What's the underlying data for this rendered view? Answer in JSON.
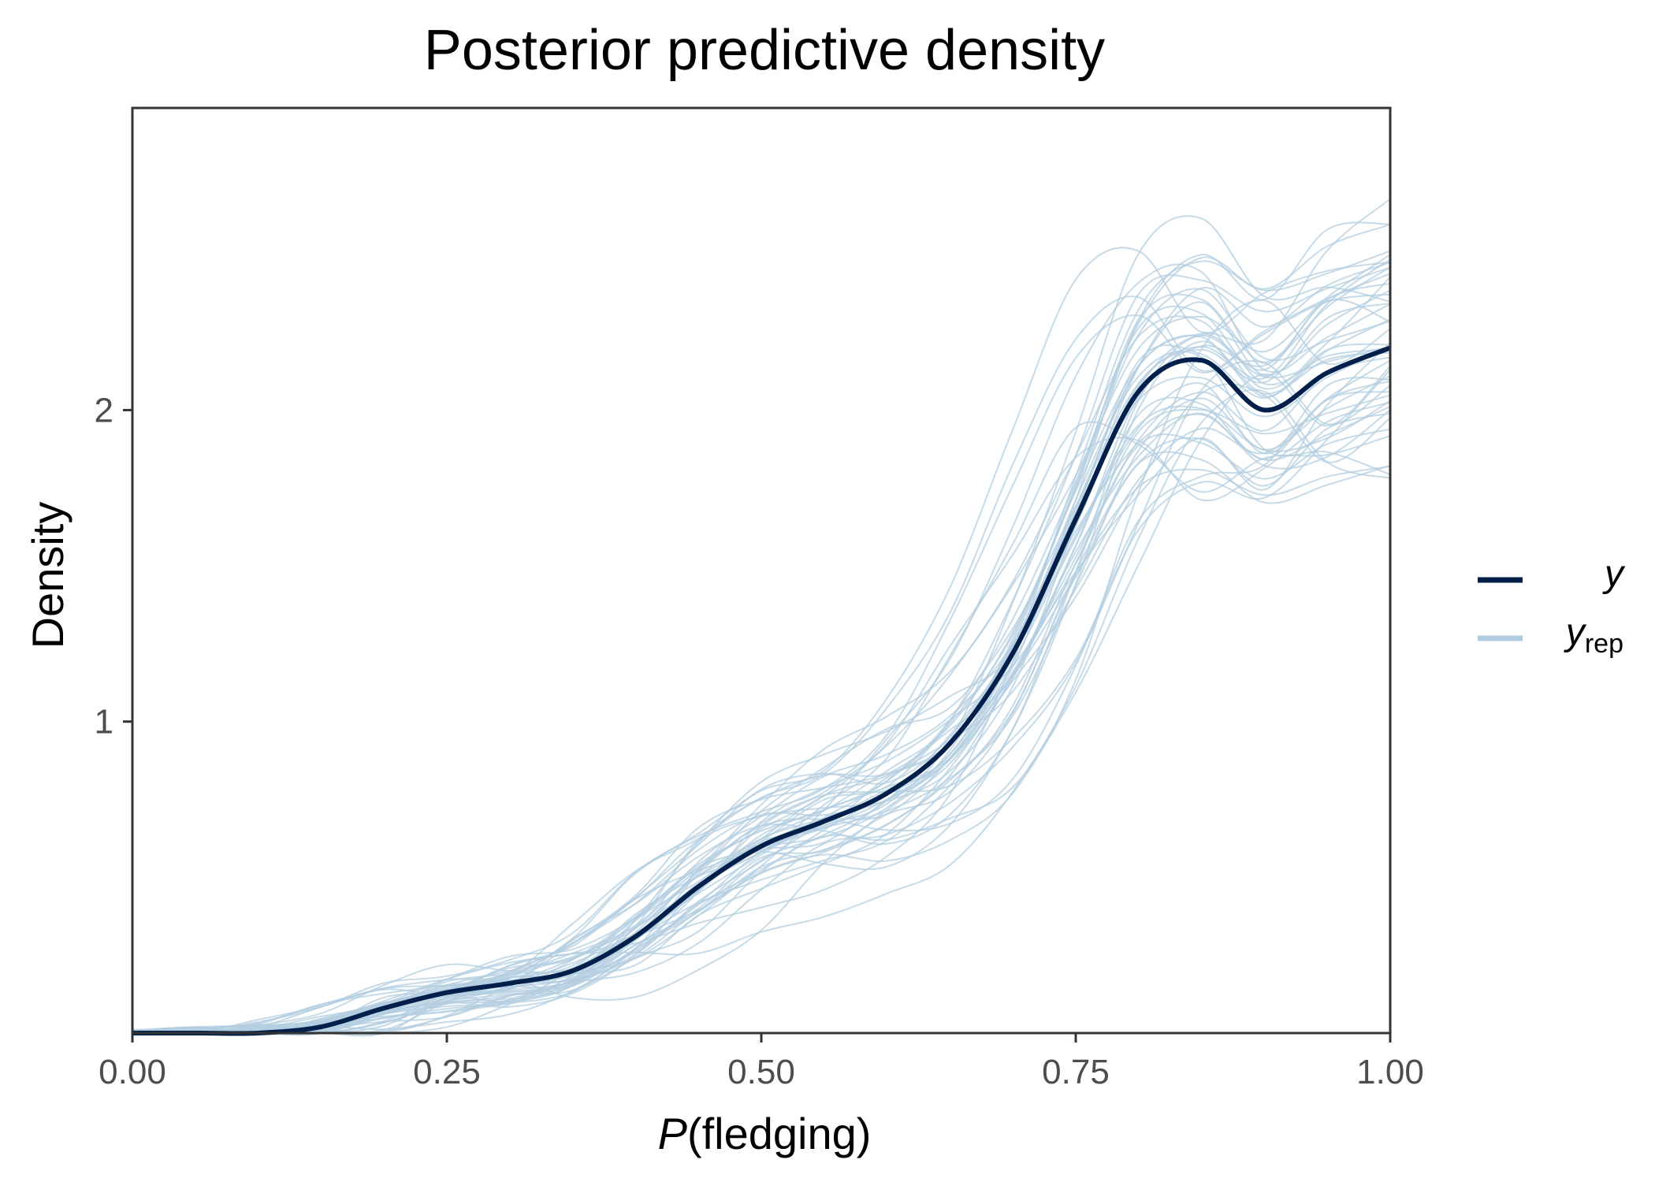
{
  "chart_data": {
    "type": "line",
    "title": "Posterior predictive density",
    "xlabel_italic": "P",
    "xlabel_rest": "(fledging)",
    "ylabel": "Density",
    "xlim": [
      0,
      1
    ],
    "ylim": [
      0,
      2.97
    ],
    "x_ticks": [
      0,
      0.25,
      0.5,
      0.75,
      1.0
    ],
    "x_tick_labels": [
      "0.00",
      "0.25",
      "0.50",
      "0.75",
      "1.00"
    ],
    "y_ticks": [
      1,
      2
    ],
    "y_tick_labels": [
      "1",
      "2"
    ],
    "grid": false,
    "legend_position": "right",
    "legend": [
      {
        "key": "y",
        "label": "y",
        "subscript": ""
      },
      {
        "key": "yrep",
        "label": "y",
        "subscript": "rep"
      }
    ],
    "colors": {
      "y": "#011f4b",
      "yrep": "#b3cde0"
    },
    "n_replicates": 50,
    "observed": {
      "name": "y",
      "x": [
        0,
        0.05,
        0.1,
        0.15,
        0.2,
        0.25,
        0.3,
        0.35,
        0.4,
        0.45,
        0.5,
        0.55,
        0.6,
        0.65,
        0.7,
        0.75,
        0.8,
        0.85,
        0.9,
        0.95,
        1.0
      ],
      "y": [
        0.0,
        0.0,
        0.0,
        0.02,
        0.08,
        0.13,
        0.16,
        0.2,
        0.31,
        0.47,
        0.6,
        0.68,
        0.77,
        0.93,
        1.22,
        1.65,
        2.06,
        2.16,
        2.0,
        2.12,
        2.2
      ]
    }
  }
}
